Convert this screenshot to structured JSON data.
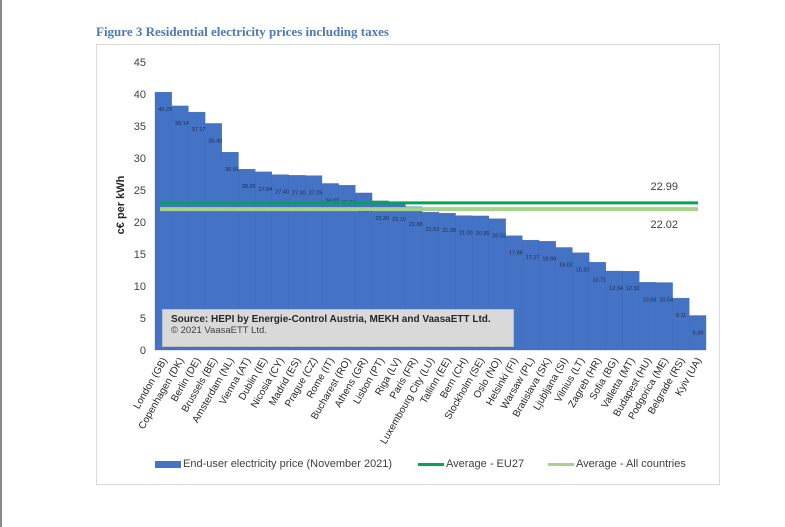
{
  "figure_title": "Figure 3 Residential electricity prices including taxes",
  "source": {
    "line1": "Source: HEPI by Energie-Control Austria, MEKH and VaasaETT Ltd.",
    "line2": "© 2021 VaasaETT Ltd."
  },
  "chart_data": {
    "type": "bar",
    "title": "Figure 3 Residential electricity prices including taxes",
    "xlabel": "",
    "ylabel": "c€ per kWh",
    "ylim": [
      0,
      45
    ],
    "yticks": [
      0,
      5,
      10,
      15,
      20,
      25,
      30,
      35,
      40,
      45
    ],
    "grid": false,
    "categories": [
      "London (GB)",
      "Copenhagen (DK)",
      "Berlin (DE)",
      "Brussels (BE)",
      "Amsterdam (NL)",
      "Vienna (AT)",
      "Dublin (IE)",
      "Nicosia (CY)",
      "Madrid (ES)",
      "Prague (CZ)",
      "Rome (IT)",
      "Bucharest (RO)",
      "Athens (GR)",
      "Lisbon (PT)",
      "Riga (LV)",
      "Paris (FR)",
      "Luxembourg City (LU)",
      "Tallinn (EE)",
      "Bern (CH)",
      "Stockholm (SE)",
      "Oslo (NO)",
      "Helsinki (FI)",
      "Warsaw (PL)",
      "Bratislava (SK)",
      "Ljubljana (SI)",
      "Vilnius (LT)",
      "Zagreb (HR)",
      "Sofia (BG)",
      "Valletta (MT)",
      "Budapest (HU)",
      "Podgorica (ME)",
      "Belgrade (RS)",
      "Kyiv (UA)"
    ],
    "values": [
      40.29,
      38.14,
      37.17,
      35.4,
      30.91,
      28.26,
      27.84,
      27.4,
      27.3,
      27.25,
      26.02,
      25.74,
      24.54,
      23.3,
      23.15,
      22.38,
      21.53,
      21.38,
      21.0,
      20.95,
      20.52,
      17.86,
      17.17,
      16.99,
      16.02,
      15.2,
      13.71,
      12.34,
      12.32,
      10.58,
      10.54,
      8.11,
      5.39
    ],
    "value_labels": [
      "40.29",
      "38.14",
      "37.17",
      "35.40",
      "30.91",
      "28.26",
      "27.84",
      "27.40",
      "27.30",
      "27.25",
      "26.02",
      "25.74",
      "24.54",
      "23.30",
      "23.15",
      "22.38",
      "21.53",
      "21.38",
      "21.00",
      "20.95",
      "20.52",
      "17.86",
      "17.17",
      "16.99",
      "16.02",
      "15.20",
      "13.71",
      "12.34",
      "12.32",
      "10.58",
      "10.54",
      "8.11",
      "5.39"
    ],
    "series_name": "End-user electricity price (November 2021)",
    "reference_lines": [
      {
        "name": "Average - EU27",
        "value": 22.99,
        "label": "22.99",
        "color": "#00a651"
      },
      {
        "name": "Average - All countries",
        "value": 22.02,
        "label": "22.02",
        "color": "#a9d18e"
      }
    ],
    "bar_color": "#4472c4",
    "legend_position": "bottom"
  }
}
